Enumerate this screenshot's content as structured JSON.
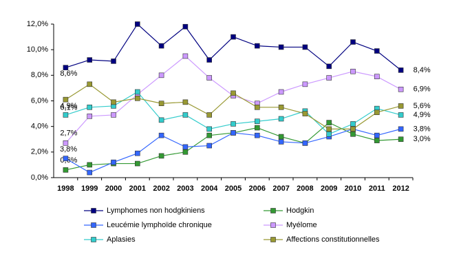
{
  "chart_data": {
    "type": "line",
    "categories": [
      "1998",
      "1999",
      "2000",
      "2001",
      "2002",
      "2003",
      "2004",
      "2005",
      "2006",
      "2007",
      "2008",
      "2009",
      "2010",
      "2011",
      "2012"
    ],
    "ylim": [
      0,
      12
    ],
    "yticks": [
      {
        "value": 0,
        "label": "0,0%"
      },
      {
        "value": 2,
        "label": "2,0%"
      },
      {
        "value": 4,
        "label": "4,0%"
      },
      {
        "value": 6,
        "label": "6,0%"
      },
      {
        "value": 8,
        "label": "8,0%"
      },
      {
        "value": 10,
        "label": "10,0%"
      },
      {
        "value": 12,
        "label": "12,0%"
      }
    ],
    "grid": false,
    "series": [
      {
        "name": "Lymphomes non hodgkiniens",
        "color": "#000080",
        "values": [
          8.6,
          9.2,
          9.1,
          12.0,
          10.3,
          11.8,
          9.2,
          11.0,
          10.3,
          10.2,
          10.2,
          8.7,
          10.6,
          9.9,
          8.4
        ],
        "value_labels": [
          "8,6%",
          null,
          null,
          null,
          null,
          null,
          null,
          null,
          null,
          null,
          null,
          null,
          null,
          null,
          "8,4%"
        ]
      },
      {
        "name": "Hodgkin",
        "color": "#339933",
        "values": [
          0.6,
          1.0,
          1.1,
          1.1,
          1.7,
          2.0,
          3.3,
          3.5,
          3.9,
          3.2,
          2.7,
          4.3,
          3.4,
          2.9,
          3.0
        ],
        "value_labels": [
          "0,6%",
          null,
          null,
          null,
          null,
          null,
          null,
          null,
          null,
          null,
          null,
          null,
          null,
          null,
          "3,0%"
        ]
      },
      {
        "name": "Leucémie lymphoïde chronique",
        "color": "#3366ff",
        "values": [
          1.5,
          0.4,
          1.2,
          1.9,
          3.3,
          2.4,
          2.5,
          3.5,
          3.3,
          2.8,
          2.7,
          3.2,
          3.8,
          3.3,
          3.8
        ],
        "value_labels": [
          null,
          null,
          null,
          null,
          null,
          null,
          null,
          null,
          null,
          null,
          null,
          null,
          null,
          null,
          "3,8%"
        ]
      },
      {
        "name": "Myélome",
        "color": "#cc99ff",
        "values": [
          2.7,
          4.8,
          4.9,
          6.5,
          8.0,
          9.5,
          7.8,
          6.4,
          5.8,
          6.7,
          7.3,
          7.8,
          8.3,
          7.9,
          6.9
        ],
        "value_labels": [
          "2,7%",
          null,
          null,
          null,
          null,
          null,
          null,
          null,
          null,
          null,
          null,
          null,
          null,
          null,
          "6,9%"
        ]
      },
      {
        "name": "Aplasies",
        "color": "#33cccc",
        "values": [
          4.9,
          5.5,
          5.6,
          6.7,
          4.5,
          4.9,
          3.8,
          4.2,
          4.4,
          4.6,
          5.2,
          3.4,
          4.2,
          5.4,
          4.9
        ],
        "value_labels": [
          "4,9%",
          null,
          null,
          null,
          null,
          null,
          null,
          null,
          null,
          null,
          null,
          null,
          null,
          null,
          "4,9%"
        ]
      },
      {
        "name": "Affections constitutionnelles",
        "color": "#999933",
        "values": [
          6.1,
          7.3,
          5.9,
          6.2,
          5.8,
          5.9,
          4.9,
          6.6,
          5.5,
          5.5,
          5.0,
          3.8,
          3.8,
          5.1,
          5.6
        ],
        "value_labels": [
          "6,1%",
          null,
          null,
          null,
          null,
          null,
          null,
          null,
          null,
          null,
          null,
          null,
          null,
          null,
          "5,6%"
        ]
      }
    ],
    "annotations": [
      "3,8%"
    ]
  }
}
